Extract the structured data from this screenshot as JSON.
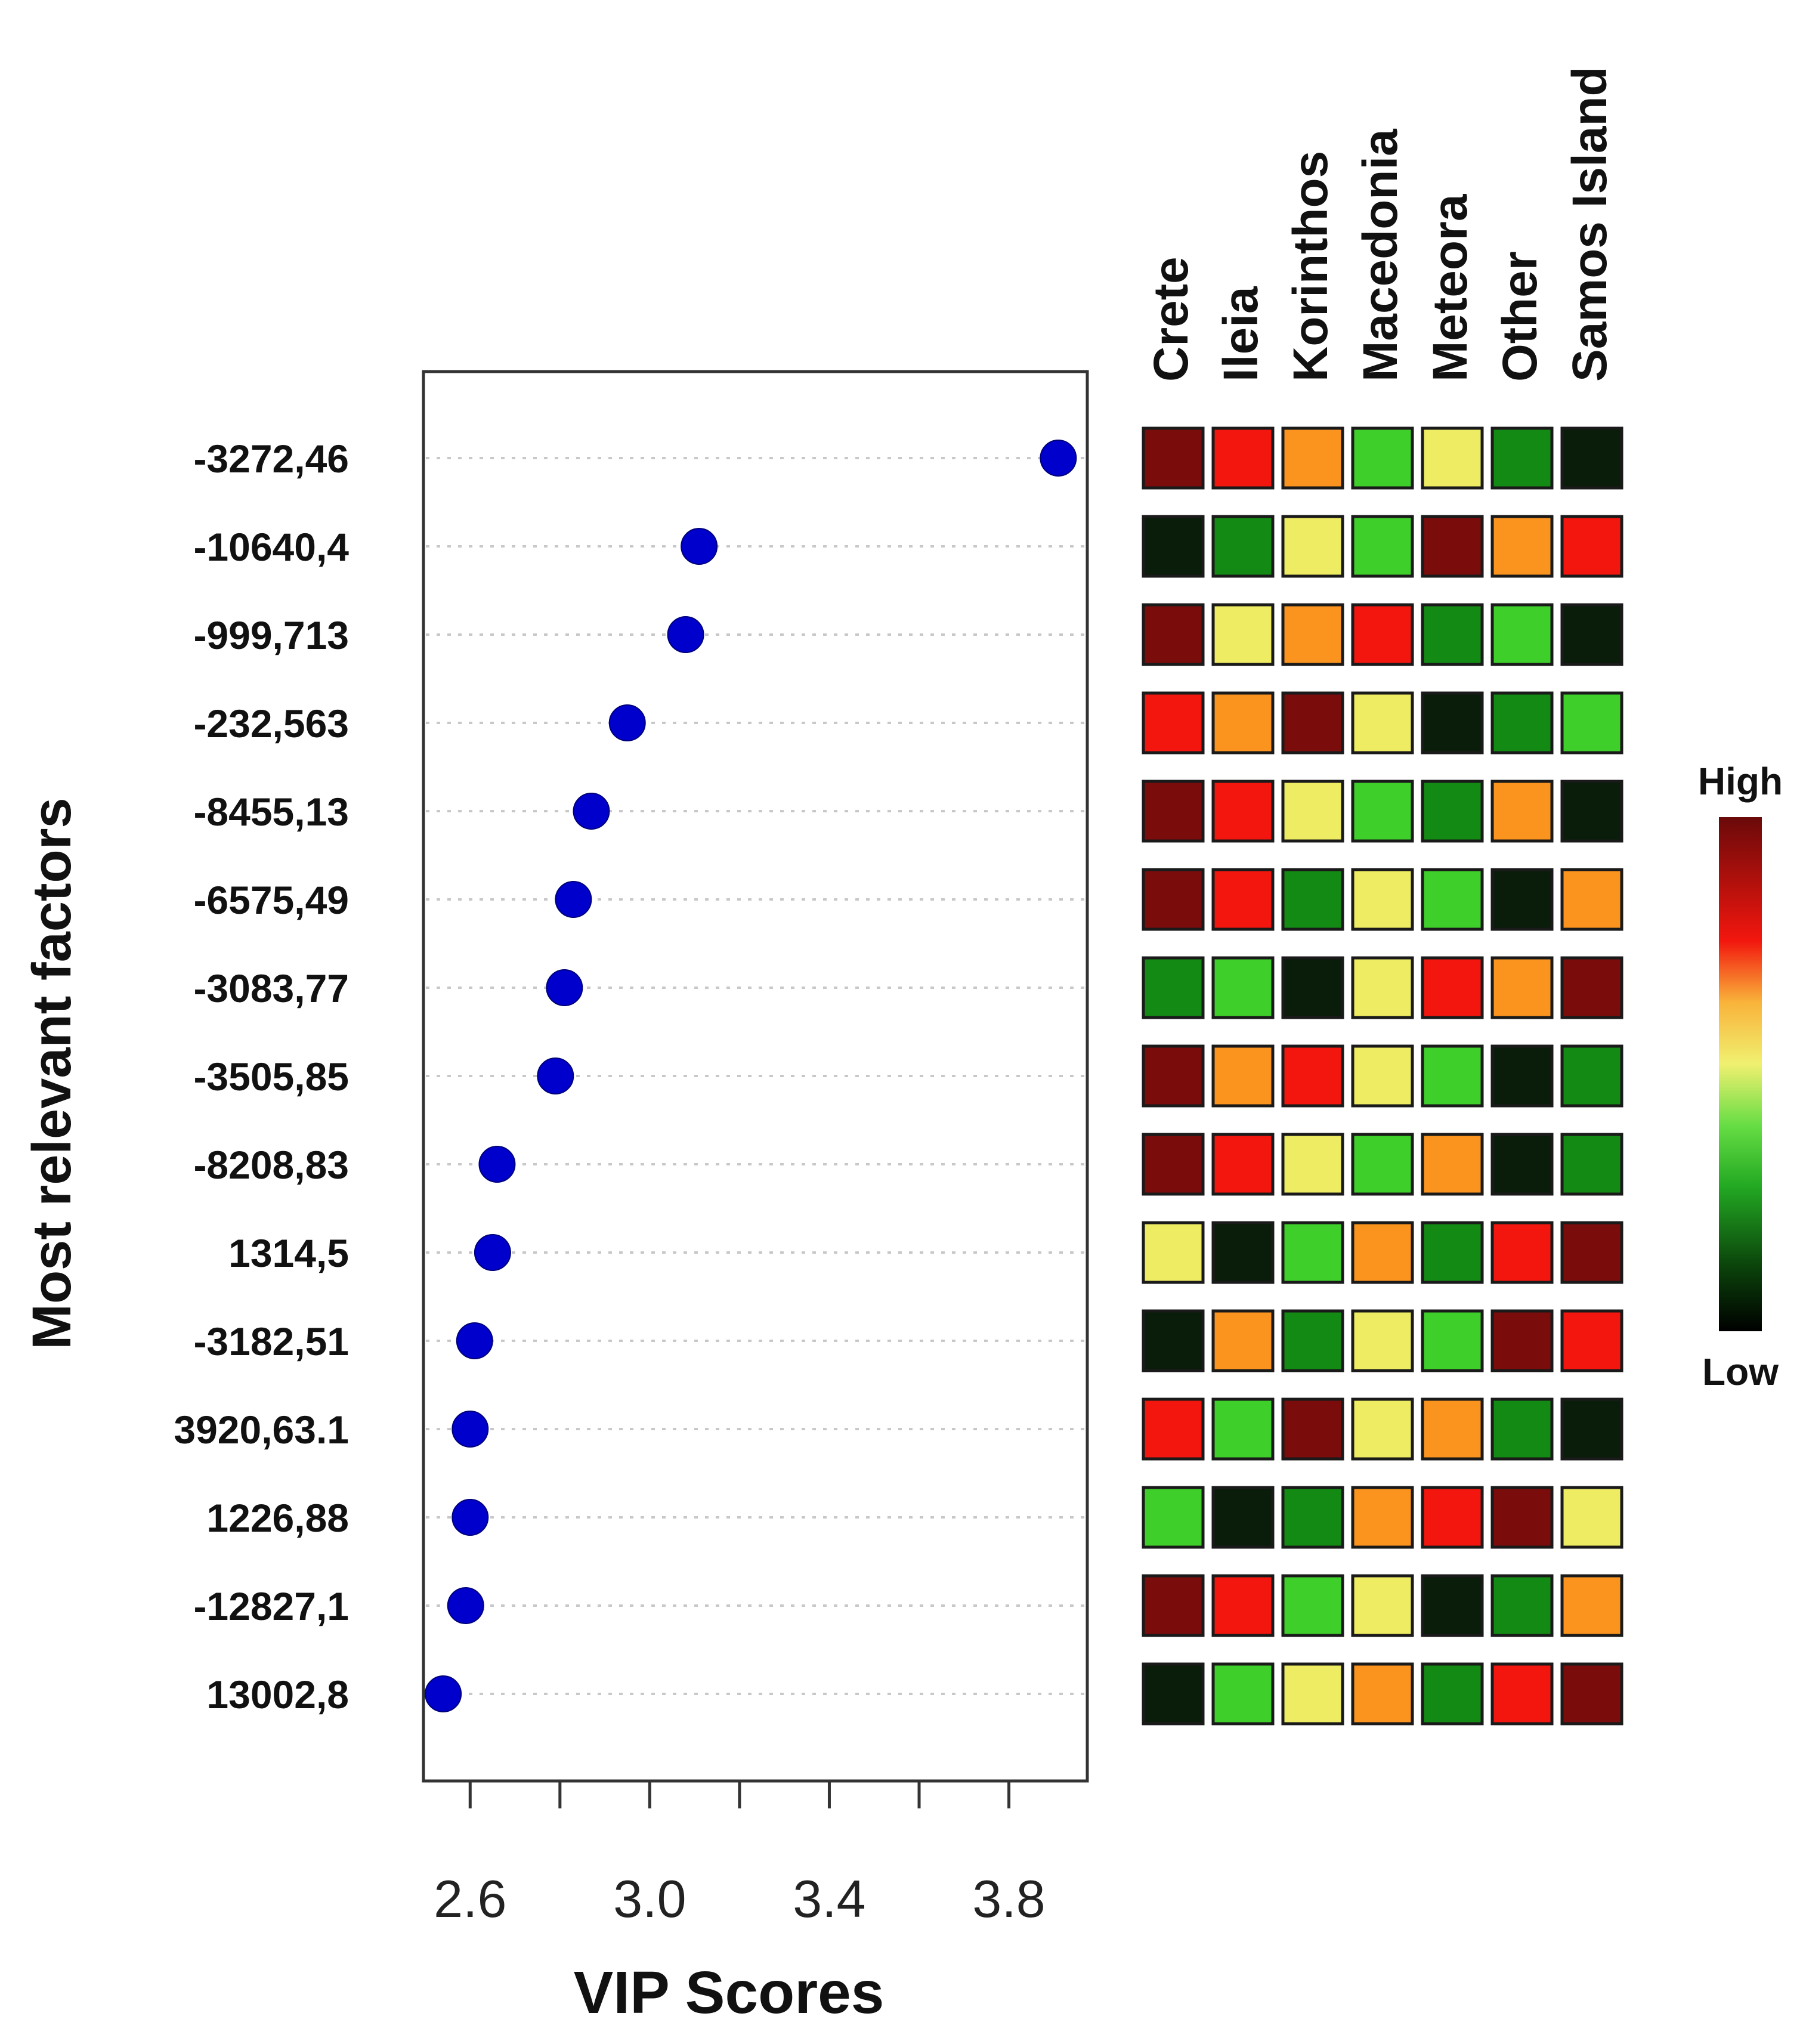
{
  "chart_data": {
    "type": "scatter",
    "title": "",
    "xlabel": "VIP Scores",
    "ylabel": "Most relevant factors",
    "xlim": [
      2.5,
      3.96
    ],
    "xticks": [
      2.6,
      3.0,
      3.4,
      3.8
    ],
    "xtick_labels": [
      "2.6",
      "3.0",
      "3.4",
      "3.8"
    ],
    "x_minor_ticks": [
      2.8,
      3.2,
      3.6
    ],
    "grid": "dotted horizontal",
    "factors": [
      "-3272,46",
      "-10640,4",
      "-999,713",
      "-232,563",
      "-8455,13",
      "-6575,49",
      "-3083,77",
      "-3505,85",
      "-8208,83",
      "1314,5",
      "-3182,51",
      "3920,63.1",
      "1226,88",
      "-12827,1",
      "13002,8"
    ],
    "vip_scores": [
      3.91,
      3.11,
      3.08,
      2.95,
      2.87,
      2.83,
      2.81,
      2.79,
      2.66,
      2.65,
      2.61,
      2.6,
      2.6,
      2.59,
      2.54
    ],
    "heatmap": {
      "groups": [
        "Crete",
        "Ileia",
        "Korinthos",
        "Macedonia",
        "Meteora",
        "Other",
        "Samos Island"
      ],
      "levels": [
        [
          6,
          5,
          4,
          2,
          3,
          1,
          0
        ],
        [
          0,
          1,
          3,
          2,
          6,
          4,
          5
        ],
        [
          6,
          3,
          4,
          5,
          1,
          2,
          0
        ],
        [
          5,
          4,
          6,
          3,
          0,
          1,
          2
        ],
        [
          6,
          5,
          3,
          2,
          1,
          4,
          0
        ],
        [
          6,
          5,
          1,
          3,
          2,
          0,
          4
        ],
        [
          1,
          2,
          0,
          3,
          5,
          4,
          6
        ],
        [
          6,
          4,
          5,
          3,
          2,
          0,
          1
        ],
        [
          6,
          5,
          3,
          2,
          4,
          0,
          1
        ],
        [
          3,
          0,
          2,
          4,
          1,
          5,
          6
        ],
        [
          0,
          4,
          1,
          3,
          2,
          6,
          5
        ],
        [
          5,
          2,
          6,
          3,
          4,
          1,
          0
        ],
        [
          2,
          0,
          1,
          4,
          5,
          6,
          3
        ],
        [
          6,
          5,
          2,
          3,
          0,
          1,
          4
        ],
        [
          0,
          2,
          3,
          4,
          1,
          5,
          6
        ]
      ],
      "palette": [
        "#0a1c0a",
        "#138a13",
        "#3fcf2a",
        "#eeec62",
        "#fa941e",
        "#f2160e",
        "#7a0c0c"
      ],
      "legend": {
        "high": "High",
        "low": "Low"
      }
    },
    "point_color": "#0000cc"
  }
}
